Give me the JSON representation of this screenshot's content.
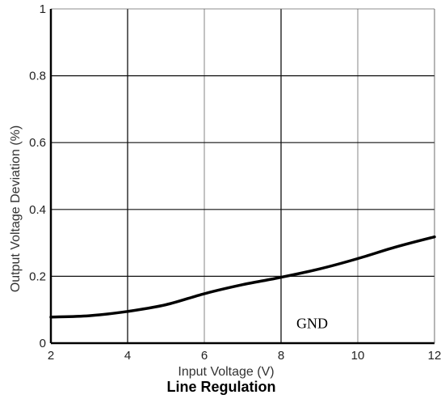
{
  "chart_data": {
    "type": "line",
    "title": "Line Regulation",
    "xlabel": "Input Voltage (V)",
    "ylabel": "Output Voltage Deviation (%)",
    "xlim": [
      2,
      12
    ],
    "ylim": [
      0,
      1
    ],
    "x_ticks": [
      2,
      4,
      6,
      8,
      10,
      12
    ],
    "y_ticks": [
      0,
      0.2,
      0.4,
      0.6,
      0.8,
      1
    ],
    "x_tick_labels": [
      "2",
      "4",
      "6",
      "8",
      "10",
      "12"
    ],
    "y_tick_labels": [
      "0",
      "0.2",
      "0.4",
      "0.6",
      "0.8",
      "1"
    ],
    "grid": true,
    "series": [
      {
        "x": [
          2,
          3,
          4,
          5,
          6,
          7,
          8,
          9,
          10,
          11,
          12
        ],
        "y": [
          0.078,
          0.082,
          0.095,
          0.115,
          0.148,
          0.175,
          0.197,
          0.222,
          0.253,
          0.288,
          0.318
        ],
        "color": "#000000"
      }
    ],
    "annotations": [
      {
        "text": "GND",
        "x": 8.4,
        "y": 0.045
      }
    ]
  }
}
